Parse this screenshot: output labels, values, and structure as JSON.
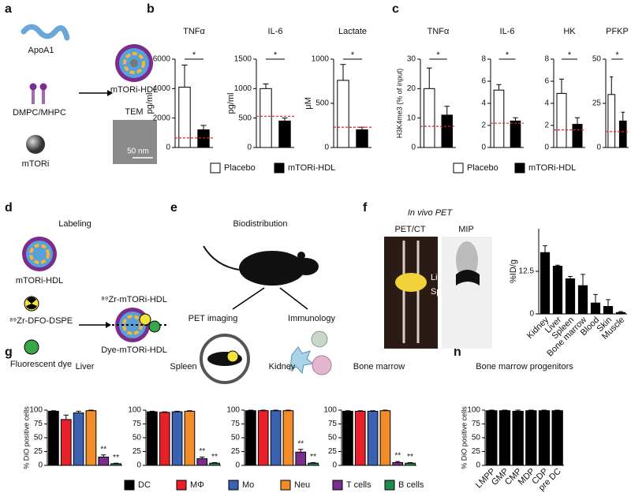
{
  "panel_letters": [
    "a",
    "b",
    "c",
    "d",
    "e",
    "f",
    "g",
    "h"
  ],
  "labels": {
    "apoa1": "ApoA1",
    "dmpc": "DMPC/MHPC",
    "mtori": "mTORi",
    "mtori_hdl": "mTORi-HDL",
    "tem": "TEM",
    "scale": "50 nm",
    "labeling": "Labeling",
    "mtori_hdl_d": "mTORi-HDL",
    "zr_dfo": "⁸⁹Zr-DFO-DSPE",
    "dye": "Fluorescent dye",
    "zr_hdl": "⁸⁹Zr-mTORi-HDL",
    "dye_hdl": "Dye-mTORi-HDL",
    "biodist": "Biodistribution",
    "pet_imaging": "PET imaging",
    "immunology": "Immunology",
    "in_vivo": "In vivo PET",
    "petct": "PET/CT",
    "mip": "MIP",
    "li": "Li",
    "sp": "Sp"
  },
  "legends": [
    {
      "items": [
        {
          "name": "Placebo",
          "color": "#ffffff"
        },
        {
          "name": "mTORi-HDL",
          "color": "#000000"
        }
      ]
    },
    {
      "items": [
        {
          "name": "Placebo",
          "color": "#ffffff"
        },
        {
          "name": "mTORi-HDL",
          "color": "#000000"
        }
      ]
    },
    {
      "items": [
        {
          "name": "DC",
          "color": "#000000"
        },
        {
          "name": "MΦ",
          "color": "#e8202a"
        },
        {
          "name": "Mo",
          "color": "#3a62b0"
        },
        {
          "name": "Neu",
          "color": "#f28c28"
        },
        {
          "name": "T cells",
          "color": "#7b2d8e"
        },
        {
          "name": "B cells",
          "color": "#1f8a4c"
        }
      ]
    }
  ],
  "chart_data": [
    {
      "type": "bar",
      "title": "TNFα",
      "ylabel": "pg/ml",
      "values": [
        4100,
        1200
      ],
      "errors": [
        1500,
        300
      ],
      "colors": [
        "#ffffff",
        "#000000"
      ],
      "reference": 650,
      "significance": "*",
      "ylim": [
        0,
        6000
      ],
      "yticks": [
        0,
        2000,
        4000,
        6000
      ]
    },
    {
      "type": "bar",
      "title": "IL-6",
      "ylabel": "pg/ml",
      "values": [
        1000,
        450
      ],
      "errors": [
        80,
        50
      ],
      "colors": [
        "#ffffff",
        "#000000"
      ],
      "reference": 530,
      "significance": "*",
      "ylim": [
        0,
        1500
      ],
      "yticks": [
        0,
        500,
        1000,
        1500
      ]
    },
    {
      "type": "bar",
      "title": "Lactate",
      "ylabel": "μM",
      "values": [
        760,
        200
      ],
      "errors": [
        180,
        30
      ],
      "colors": [
        "#ffffff",
        "#000000"
      ],
      "reference": 230,
      "significance": "*",
      "ylim": [
        0,
        1000
      ],
      "yticks": [
        0,
        500,
        1000
      ]
    },
    {
      "type": "bar",
      "title": "TNFα",
      "ylabel": "H3K4me3 (% of input)",
      "values": [
        20,
        11
      ],
      "errors": [
        7,
        3
      ],
      "colors": [
        "#ffffff",
        "#000000"
      ],
      "reference": 7.2,
      "significance": "*",
      "ylim": [
        0,
        30
      ],
      "yticks": [
        0,
        10,
        20,
        30
      ]
    },
    {
      "type": "bar",
      "title": "IL-6",
      "values": [
        5.2,
        2.4
      ],
      "errors": [
        0.5,
        0.3
      ],
      "colors": [
        "#ffffff",
        "#000000"
      ],
      "reference": 2.2,
      "significance": "*",
      "ylim": [
        0,
        8
      ],
      "yticks": [
        0,
        2,
        4,
        6,
        8
      ]
    },
    {
      "type": "bar",
      "title": "HK",
      "values": [
        4.9,
        2.1
      ],
      "errors": [
        1.3,
        0.6
      ],
      "colors": [
        "#ffffff",
        "#000000"
      ],
      "reference": 1.6,
      "significance": "*",
      "ylim": [
        0,
        8
      ],
      "yticks": [
        0,
        2,
        4,
        6,
        8
      ]
    },
    {
      "type": "bar",
      "title": "PFKP",
      "values": [
        30,
        15
      ],
      "errors": [
        10,
        5
      ],
      "colors": [
        "#ffffff",
        "#000000"
      ],
      "reference": 9,
      "significance": "*",
      "ylim": [
        0,
        50
      ],
      "yticks": [
        0,
        25,
        50
      ]
    },
    {
      "type": "bar",
      "ylabel": "%ID/g",
      "categories": [
        "Kidney",
        "Liver",
        "Spleen",
        "Bone marrow",
        "Blood",
        "Skin",
        "Muscle"
      ],
      "values": [
        18,
        14,
        10.3,
        8.3,
        3.2,
        2.2,
        0.4
      ],
      "errors": [
        2,
        0.3,
        0.7,
        3.3,
        2.5,
        2,
        0.3
      ],
      "color": "#000000",
      "ylim": [
        0,
        25
      ],
      "yticks": [
        0,
        12.5
      ]
    },
    {
      "type": "bar",
      "title": "Liver",
      "ylabel": "% DiO positive cells",
      "values": [
        98,
        83,
        95,
        99,
        15,
        3
      ],
      "errors": [
        1,
        8,
        3,
        1,
        4,
        1
      ],
      "colors": [
        "#000000",
        "#e8202a",
        "#3a62b0",
        "#f28c28",
        "#7b2d8e",
        "#1f8a4c"
      ],
      "annotations": [
        null,
        null,
        null,
        null,
        "**",
        "**"
      ],
      "ylim": [
        0,
        100
      ],
      "yticks": [
        0,
        25,
        50,
        75,
        100
      ]
    },
    {
      "type": "bar",
      "title": "Spleen",
      "values": [
        97,
        96,
        97,
        98,
        12,
        4
      ],
      "errors": [
        1,
        1,
        1,
        1,
        3,
        1
      ],
      "colors": [
        "#000000",
        "#e8202a",
        "#3a62b0",
        "#f28c28",
        "#7b2d8e",
        "#1f8a4c"
      ],
      "annotations": [
        null,
        null,
        null,
        null,
        "**",
        "**"
      ],
      "ylim": [
        0,
        100
      ],
      "yticks": [
        0,
        25,
        50,
        75,
        100
      ]
    },
    {
      "type": "bar",
      "title": "Kidney",
      "values": [
        99,
        99,
        99,
        99,
        24,
        4
      ],
      "errors": [
        1,
        1,
        1,
        1,
        5,
        1
      ],
      "colors": [
        "#000000",
        "#e8202a",
        "#3a62b0",
        "#f28c28",
        "#7b2d8e",
        "#1f8a4c"
      ],
      "annotations": [
        null,
        null,
        null,
        null,
        "**",
        "**"
      ],
      "ylim": [
        0,
        100
      ],
      "yticks": [
        0,
        25,
        50,
        75,
        100
      ]
    },
    {
      "type": "bar",
      "title": "Bone marrow",
      "values": [
        98,
        98,
        98,
        99,
        5,
        4
      ],
      "errors": [
        1,
        1,
        1,
        1,
        2,
        1
      ],
      "colors": [
        "#000000",
        "#e8202a",
        "#3a62b0",
        "#f28c28",
        "#7b2d8e",
        "#1f8a4c"
      ],
      "annotations": [
        null,
        null,
        null,
        null,
        "**",
        "**"
      ],
      "ylim": [
        0,
        100
      ],
      "yticks": [
        0,
        25,
        50,
        75,
        100
      ]
    },
    {
      "type": "bar",
      "title": "Bone marrow progenitors",
      "ylabel": "% DiO positive cells",
      "categories": [
        "LMPP",
        "GMP",
        "CMP",
        "MDP",
        "CDP",
        "pre DC"
      ],
      "values": [
        99,
        99,
        98,
        99,
        99,
        99
      ],
      "errors": [
        1,
        1,
        2,
        1,
        1,
        1
      ],
      "color": "#000000",
      "ylim": [
        0,
        100
      ],
      "yticks": [
        0,
        25,
        50,
        75,
        100
      ]
    }
  ]
}
